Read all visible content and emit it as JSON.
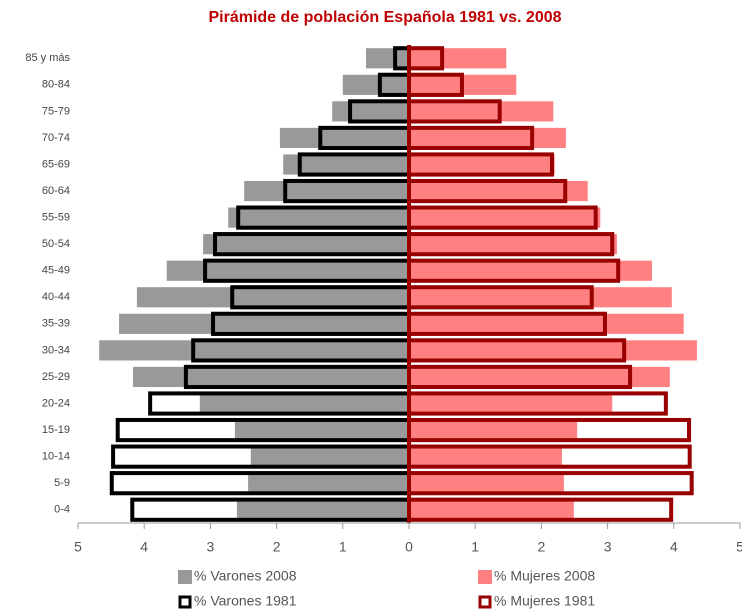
{
  "chart_data": {
    "type": "pyramid",
    "title": "Pirámide de población Española 1981 vs. 2008",
    "categories": [
      "85 y más",
      "80-84",
      "75-79",
      "70-74",
      "65-69",
      "60-64",
      "55-59",
      "50-54",
      "45-49",
      "40-44",
      "35-39",
      "30-34",
      "25-29",
      "20-24",
      "15-19",
      "10-14",
      "5-9",
      "0-4"
    ],
    "series": [
      {
        "name": "% Varones 2008",
        "color": "#999999",
        "values": [
          0.65,
          1.0,
          1.16,
          1.95,
          1.9,
          2.49,
          2.73,
          3.11,
          3.66,
          4.11,
          4.38,
          4.68,
          4.17,
          3.16,
          2.63,
          2.39,
          2.43,
          2.6
        ]
      },
      {
        "name": "% Varones 1981",
        "color": "#000000",
        "values": [
          0.21,
          0.44,
          0.89,
          1.34,
          1.65,
          1.87,
          2.58,
          2.93,
          3.08,
          2.67,
          2.96,
          3.26,
          3.37,
          3.91,
          4.4,
          4.47,
          4.49,
          4.18
        ]
      },
      {
        "name": "% Mujeres 2008",
        "color": "#ff8080",
        "values": [
          1.47,
          1.62,
          2.18,
          2.37,
          2.2,
          2.7,
          2.89,
          3.14,
          3.67,
          3.97,
          4.15,
          4.35,
          3.94,
          3.07,
          2.54,
          2.31,
          2.34,
          2.49
        ]
      },
      {
        "name": "% Mujeres 1981",
        "color": "#990000",
        "values": [
          0.5,
          0.8,
          1.37,
          1.86,
          2.16,
          2.36,
          2.82,
          3.07,
          3.16,
          2.76,
          2.96,
          3.25,
          3.34,
          3.88,
          4.23,
          4.24,
          4.27,
          3.96
        ]
      }
    ],
    "xlim": [
      -5,
      5
    ],
    "xticks": [
      {
        "value": -5,
        "label": "5"
      },
      {
        "value": -4,
        "label": "4"
      },
      {
        "value": -3,
        "label": "3"
      },
      {
        "value": -2,
        "label": "2"
      },
      {
        "value": -1,
        "label": "1"
      },
      0,
      1,
      2,
      3,
      4,
      5
    ]
  }
}
